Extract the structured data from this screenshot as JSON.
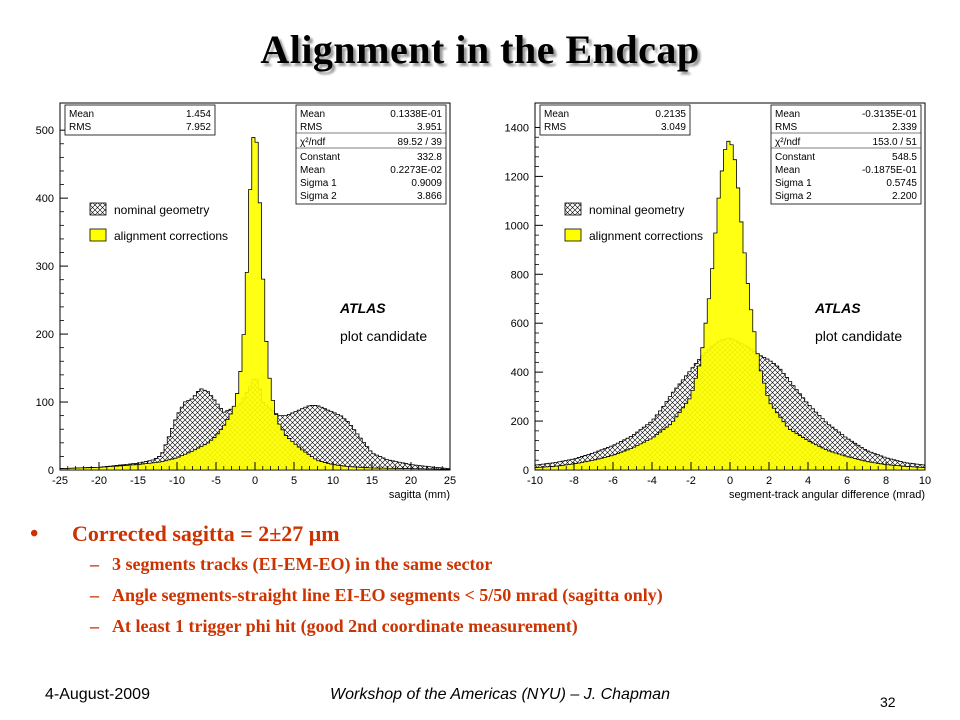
{
  "title": "Alignment in the Endcap",
  "chart_data": [
    {
      "type": "histogram",
      "xlabel": "sagitta (mm)",
      "ylabel": "",
      "xlim": [
        -25,
        25
      ],
      "ylim": [
        0,
        540
      ],
      "xticks": [
        -25,
        -20,
        -15,
        -10,
        -5,
        0,
        5,
        10,
        15,
        20,
        25
      ],
      "yticks": [
        0,
        100,
        200,
        300,
        400,
        500
      ],
      "stats_primary": [
        {
          "label": "Mean",
          "value": "1.454"
        },
        {
          "label": "RMS",
          "value": "7.952"
        }
      ],
      "stats_fit": [
        {
          "label": "Mean",
          "value": "0.1338E-01"
        },
        {
          "label": "RMS",
          "value": "3.951"
        },
        {
          "label": "χ²/ndf",
          "value": "89.52  /  39"
        },
        {
          "label": "Constant",
          "value": "332.8"
        },
        {
          "label": "Mean",
          "value": "0.2273E-02"
        },
        {
          "label": "Sigma 1",
          "value": "0.9009"
        },
        {
          "label": "Sigma 2",
          "value": "3.866"
        }
      ],
      "legend": [
        "nominal geometry",
        "alignment corrections"
      ],
      "legend_position": "left",
      "annotation_main": "ATLAS",
      "annotation_sub": "plot candidate",
      "series": [
        {
          "name": "nominal geometry",
          "style": "hatched",
          "x": [
            -25,
            -20,
            -15,
            -13,
            -12,
            -11,
            -10,
            -9,
            -8,
            -7,
            -6,
            -5,
            -4,
            -3,
            -2,
            -1,
            -0.5,
            0,
            0.5,
            1,
            2,
            3,
            4,
            5,
            6,
            7,
            8,
            9,
            10,
            11,
            12,
            13,
            14,
            15,
            17,
            20,
            23,
            25
          ],
          "y": [
            2,
            4,
            10,
            15,
            22,
            50,
            80,
            100,
            105,
            120,
            115,
            100,
            85,
            90,
            95,
            115,
            125,
            140,
            125,
            100,
            90,
            80,
            80,
            85,
            90,
            95,
            95,
            90,
            85,
            80,
            70,
            55,
            40,
            25,
            15,
            8,
            4,
            2
          ]
        },
        {
          "name": "alignment corrections",
          "style": "yellow",
          "x": [
            -25,
            -20,
            -15,
            -12,
            -10,
            -8,
            -6,
            -5,
            -4,
            -3,
            -2.5,
            -2,
            -1.5,
            -1,
            -0.6,
            -0.3,
            0,
            0.3,
            0.6,
            1,
            1.5,
            2,
            2.5,
            3,
            4,
            5,
            6,
            7,
            8,
            10,
            12,
            15,
            20,
            25
          ],
          "y": [
            2,
            4,
            8,
            12,
            18,
            28,
            40,
            50,
            65,
            85,
            100,
            130,
            190,
            300,
            420,
            480,
            510,
            470,
            400,
            290,
            180,
            120,
            90,
            70,
            50,
            40,
            30,
            22,
            14,
            8,
            5,
            3,
            2,
            1
          ]
        }
      ]
    },
    {
      "type": "histogram",
      "xlabel": "segment-track angular difference (mrad)",
      "ylabel": "",
      "xlim": [
        -10,
        10
      ],
      "ylim": [
        0,
        1500
      ],
      "xticks": [
        -10,
        -8,
        -6,
        -4,
        -2,
        0,
        2,
        4,
        6,
        8,
        10
      ],
      "yticks": [
        0,
        200,
        400,
        600,
        800,
        1000,
        1200,
        1400
      ],
      "stats_primary": [
        {
          "label": "Mean",
          "value": "0.2135"
        },
        {
          "label": "RMS",
          "value": "3.049"
        }
      ],
      "stats_fit": [
        {
          "label": "Mean",
          "value": "-0.3135E-01"
        },
        {
          "label": "RMS",
          "value": "2.339"
        },
        {
          "label": "χ²/ndf",
          "value": "153.0  /  51"
        },
        {
          "label": "Constant",
          "value": "548.5"
        },
        {
          "label": "Mean",
          "value": "-0.1875E-01"
        },
        {
          "label": "Sigma 1",
          "value": "0.5745"
        },
        {
          "label": "Sigma 2",
          "value": "2.200"
        }
      ],
      "legend": [
        "nominal geometry",
        "alignment corrections"
      ],
      "legend_position": "left",
      "annotation_main": "ATLAS",
      "annotation_sub": "plot candidate",
      "series": [
        {
          "name": "nominal geometry",
          "style": "hatched",
          "x": [
            -10,
            -9,
            -8,
            -7,
            -6,
            -5,
            -4,
            -3.5,
            -3,
            -2.5,
            -2,
            -1.5,
            -1,
            -0.5,
            0,
            0.5,
            1,
            1.5,
            2,
            2.5,
            3,
            3.5,
            4,
            5,
            6,
            7,
            8,
            9,
            10
          ],
          "y": [
            20,
            30,
            45,
            70,
            100,
            140,
            200,
            250,
            310,
            360,
            410,
            460,
            500,
            530,
            540,
            520,
            500,
            470,
            450,
            420,
            370,
            320,
            270,
            190,
            130,
            80,
            50,
            30,
            20
          ]
        },
        {
          "name": "alignment corrections",
          "style": "yellow",
          "x": [
            -10,
            -9,
            -8,
            -7,
            -6,
            -5,
            -4,
            -3,
            -2,
            -1.5,
            -1,
            -0.6,
            -0.3,
            0,
            0.3,
            0.6,
            1,
            1.5,
            2,
            3,
            4,
            5,
            6,
            7,
            8,
            9,
            10
          ],
          "y": [
            10,
            15,
            25,
            40,
            60,
            90,
            130,
            190,
            300,
            450,
            750,
            1100,
            1300,
            1360,
            1250,
            1000,
            700,
            430,
            280,
            170,
            120,
            80,
            55,
            35,
            22,
            15,
            10
          ]
        }
      ]
    }
  ],
  "bullets": {
    "main": "Corrected sagitta = 2±27 μm",
    "subs": [
      "3 segments tracks (EI-EM-EO) in the same sector",
      "Angle segments-straight line EI-EO segments < 5/50 mrad (sagitta only)",
      "At least 1 trigger phi hit (good 2nd coordinate measurement)"
    ]
  },
  "footer": {
    "date": "4-August-2009",
    "center": "Workshop of the Americas (NYU) – J. Chapman",
    "page": "32"
  }
}
